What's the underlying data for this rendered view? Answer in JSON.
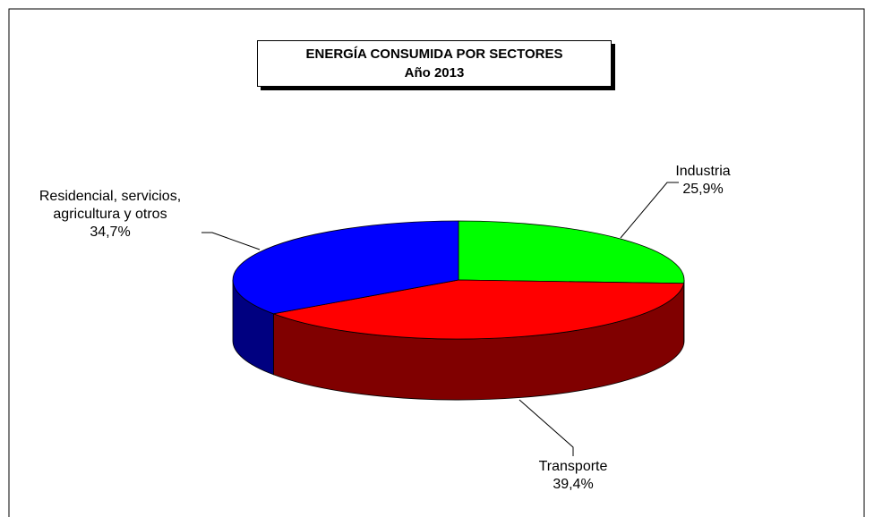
{
  "chart_data": {
    "type": "pie3d",
    "title": "ENERGÍA CONSUMIDA POR SECTORES",
    "subtitle": "Año 2013",
    "categories": [
      "Industria",
      "Transporte",
      "Residencial, servicios, agricultura y otros"
    ],
    "values": [
      25.9,
      39.4,
      34.7
    ],
    "value_labels": [
      "25,9%",
      "39,4%",
      "34,7%"
    ],
    "colors": [
      "#00ff00",
      "#ff0000",
      "#0000ff"
    ],
    "side_colors": [
      "#008000",
      "#800000",
      "#000080"
    ]
  }
}
